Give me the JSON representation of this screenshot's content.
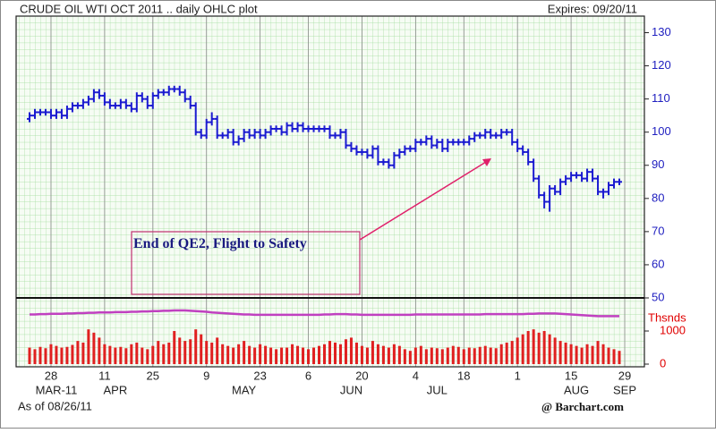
{
  "chart_data": {
    "type": "ohlc",
    "title": "CRUDE OIL WTI OCT 2011 .. daily OHLC plot",
    "expires": "Expires: 09/20/11",
    "as_of": "As of 08/26/11",
    "source": "@ Barchart.com",
    "annotation": "End of QE2, Flight to Safety",
    "color": "#1a1ad0",
    "categories": [
      null,
      null,
      null,
      null,
      "28",
      null,
      null,
      null,
      null,
      null,
      null,
      null,
      null,
      null,
      "11",
      null,
      null,
      null,
      null,
      null,
      null,
      null,
      null,
      "25",
      null,
      null,
      null,
      null,
      null,
      null,
      null,
      null,
      null,
      "9",
      null,
      null,
      null,
      null,
      null,
      null,
      null,
      null,
      null,
      "23",
      null,
      null,
      null,
      null,
      null,
      null,
      null,
      null,
      "6",
      null,
      null,
      null,
      null,
      null,
      null,
      null,
      null,
      null,
      "20",
      null,
      null,
      null,
      null,
      null,
      null,
      null,
      null,
      null,
      "4",
      null,
      null,
      null,
      null,
      null,
      null,
      null,
      null,
      "18",
      null,
      null,
      null,
      null,
      null,
      null,
      null,
      null,
      null,
      "1",
      null,
      null,
      null,
      null,
      null,
      null,
      null,
      null,
      null,
      "15",
      null,
      null,
      null,
      null,
      null,
      null,
      null,
      null,
      null,
      "29"
    ],
    "months": [
      null,
      null,
      null,
      null,
      null,
      "MAR-11",
      null,
      null,
      null,
      null,
      null,
      null,
      null,
      null,
      null,
      null,
      "APR",
      null,
      null,
      null,
      null,
      null,
      null,
      null,
      null,
      null,
      null,
      null,
      null,
      null,
      null,
      null,
      null,
      null,
      null,
      null,
      null,
      null,
      null,
      null,
      "MAY",
      null,
      null,
      null,
      null,
      null,
      null,
      null,
      null,
      null,
      null,
      null,
      null,
      null,
      null,
      null,
      null,
      null,
      null,
      null,
      "JUN",
      null,
      null,
      null,
      null,
      null,
      null,
      null,
      null,
      null,
      null,
      null,
      null,
      null,
      null,
      null,
      "JUL",
      null,
      null,
      null,
      null,
      null,
      null,
      null,
      null,
      null,
      null,
      null,
      null,
      null,
      null,
      null,
      null,
      null,
      null,
      null,
      null,
      null,
      null,
      null,
      null,
      null,
      "AUG",
      null,
      null,
      null,
      null,
      null,
      null,
      null,
      null,
      "SEP"
    ],
    "open": [
      104,
      105,
      106,
      106,
      106,
      105,
      106,
      105,
      107,
      108,
      108,
      109,
      110,
      112,
      111,
      109,
      108,
      108,
      109,
      108,
      107,
      111,
      110,
      108,
      111,
      112,
      112,
      113,
      113,
      112,
      110,
      108,
      100,
      99,
      103,
      104,
      99,
      99,
      100,
      97,
      98,
      100,
      99,
      100,
      99,
      100,
      101,
      101,
      100,
      102,
      101,
      102,
      101,
      101,
      101,
      101,
      101,
      99,
      99,
      100,
      96,
      95,
      94,
      94,
      93,
      95,
      91,
      91,
      90,
      93,
      94,
      95,
      95,
      97,
      97,
      98,
      96,
      97,
      95,
      97,
      97,
      97,
      97,
      98,
      99,
      99,
      100,
      99,
      99,
      100,
      100,
      97,
      95,
      94,
      91,
      86,
      81,
      79,
      83,
      82,
      85,
      86,
      87,
      87,
      86,
      88,
      86,
      82,
      82,
      84,
      85,
      null
    ],
    "high": [
      106,
      107,
      107,
      107,
      107,
      107,
      107,
      108,
      109,
      109,
      110,
      111,
      113,
      113,
      112,
      110,
      109,
      110,
      110,
      109,
      112,
      112,
      111,
      112,
      113,
      113,
      114,
      114,
      114,
      113,
      111,
      109,
      101,
      104,
      106,
      105,
      100,
      101,
      101,
      99,
      101,
      101,
      101,
      101,
      101,
      102,
      102,
      102,
      103,
      103,
      103,
      103,
      102,
      102,
      102,
      102,
      102,
      100,
      101,
      101,
      97,
      96,
      95,
      95,
      96,
      96,
      92,
      92,
      94,
      95,
      96,
      96,
      98,
      98,
      99,
      99,
      98,
      98,
      98,
      98,
      98,
      98,
      99,
      100,
      100,
      101,
      101,
      100,
      101,
      101,
      101,
      98,
      96,
      95,
      92,
      87,
      82,
      84,
      84,
      86,
      87,
      88,
      88,
      88,
      89,
      89,
      87,
      83,
      85,
      86,
      86,
      null
    ],
    "low": [
      103,
      104,
      105,
      105,
      104,
      104,
      104,
      104,
      106,
      107,
      107,
      108,
      109,
      110,
      108,
      107,
      107,
      107,
      107,
      106,
      106,
      109,
      107,
      107,
      110,
      111,
      111,
      112,
      111,
      109,
      107,
      99,
      98,
      98,
      102,
      98,
      98,
      98,
      96,
      96,
      97,
      98,
      98,
      98,
      98,
      99,
      100,
      99,
      99,
      100,
      100,
      100,
      100,
      100,
      100,
      100,
      98,
      98,
      98,
      95,
      94,
      93,
      93,
      92,
      92,
      90,
      90,
      89,
      89,
      92,
      93,
      94,
      94,
      96,
      96,
      95,
      95,
      94,
      94,
      96,
      96,
      96,
      96,
      97,
      98,
      98,
      98,
      98,
      98,
      99,
      96,
      94,
      93,
      90,
      85,
      80,
      77,
      76,
      81,
      81,
      84,
      85,
      86,
      85,
      85,
      85,
      81,
      80,
      81,
      83,
      84,
      null
    ],
    "close": [
      105,
      106,
      106,
      106,
      105,
      106,
      105,
      107,
      108,
      108,
      109,
      110,
      112,
      111,
      109,
      108,
      108,
      109,
      108,
      107,
      111,
      110,
      108,
      111,
      112,
      112,
      113,
      113,
      112,
      110,
      108,
      100,
      99,
      103,
      104,
      99,
      99,
      100,
      97,
      98,
      100,
      99,
      100,
      99,
      100,
      101,
      101,
      100,
      102,
      101,
      102,
      101,
      101,
      101,
      101,
      101,
      99,
      99,
      100,
      96,
      95,
      94,
      94,
      93,
      95,
      91,
      91,
      90,
      93,
      94,
      95,
      95,
      97,
      97,
      98,
      96,
      97,
      95,
      97,
      97,
      97,
      97,
      98,
      99,
      99,
      100,
      99,
      99,
      100,
      100,
      97,
      95,
      94,
      91,
      86,
      81,
      79,
      83,
      82,
      85,
      86,
      87,
      87,
      86,
      88,
      86,
      82,
      82,
      84,
      85,
      85,
      null
    ],
    "ylim": [
      50,
      135
    ],
    "yticks": [
      50,
      60,
      70,
      80,
      90,
      100,
      110,
      120,
      130
    ],
    "volume": {
      "type": "bar",
      "unit": "Thsnds",
      "ylim": [
        0,
        2000
      ],
      "yticks": [
        0,
        1000
      ],
      "series": [
        {
          "type": "bar",
          "color": "#e02020",
          "values": [
            500,
            450,
            520,
            480,
            600,
            550,
            500,
            520,
            580,
            700,
            650,
            1050,
            950,
            800,
            600,
            550,
            500,
            520,
            480,
            600,
            650,
            500,
            450,
            550,
            700,
            600,
            650,
            1000,
            800,
            700,
            750,
            1050,
            900,
            700,
            650,
            800,
            600,
            550,
            500,
            600,
            700,
            550,
            500,
            600,
            550,
            500,
            450,
            500,
            500,
            600,
            550,
            500,
            450,
            500,
            550,
            600,
            700,
            650,
            600,
            750,
            800,
            650,
            550,
            500,
            700,
            600,
            550,
            500,
            600,
            550,
            450,
            400,
            500,
            550,
            450,
            500,
            480,
            450,
            500,
            550,
            520,
            450,
            500,
            480,
            520,
            550,
            500,
            480,
            600,
            650,
            700,
            800,
            900,
            1000,
            1050,
            950,
            1000,
            900,
            800,
            700,
            650,
            600,
            550,
            500,
            600,
            550,
            700,
            600,
            500,
            450,
            400,
            null
          ]
        },
        {
          "type": "line",
          "color": "#c040c0",
          "values": [
            1500,
            1500,
            1510,
            1510,
            1520,
            1520,
            1520,
            1530,
            1530,
            1540,
            1540,
            1550,
            1550,
            1560,
            1560,
            1560,
            1570,
            1570,
            1570,
            1580,
            1580,
            1590,
            1590,
            1600,
            1600,
            1610,
            1610,
            1620,
            1620,
            1620,
            1610,
            1600,
            1590,
            1580,
            1560,
            1550,
            1540,
            1530,
            1520,
            1510,
            1500,
            1500,
            1490,
            1490,
            1490,
            1490,
            1490,
            1490,
            1490,
            1490,
            1490,
            1490,
            1490,
            1490,
            1490,
            1500,
            1500,
            1510,
            1510,
            1510,
            1500,
            1500,
            1490,
            1490,
            1490,
            1490,
            1490,
            1490,
            1490,
            1490,
            1490,
            1490,
            1500,
            1500,
            1500,
            1500,
            1500,
            1500,
            1500,
            1500,
            1500,
            1500,
            1500,
            1500,
            1500,
            1510,
            1510,
            1510,
            1510,
            1510,
            1510,
            1510,
            1510,
            1520,
            1520,
            1530,
            1530,
            1530,
            1530,
            1520,
            1510,
            1500,
            1490,
            1480,
            1470,
            1460,
            1450,
            1450,
            1450,
            1450,
            1450,
            null
          ]
        }
      ]
    }
  }
}
